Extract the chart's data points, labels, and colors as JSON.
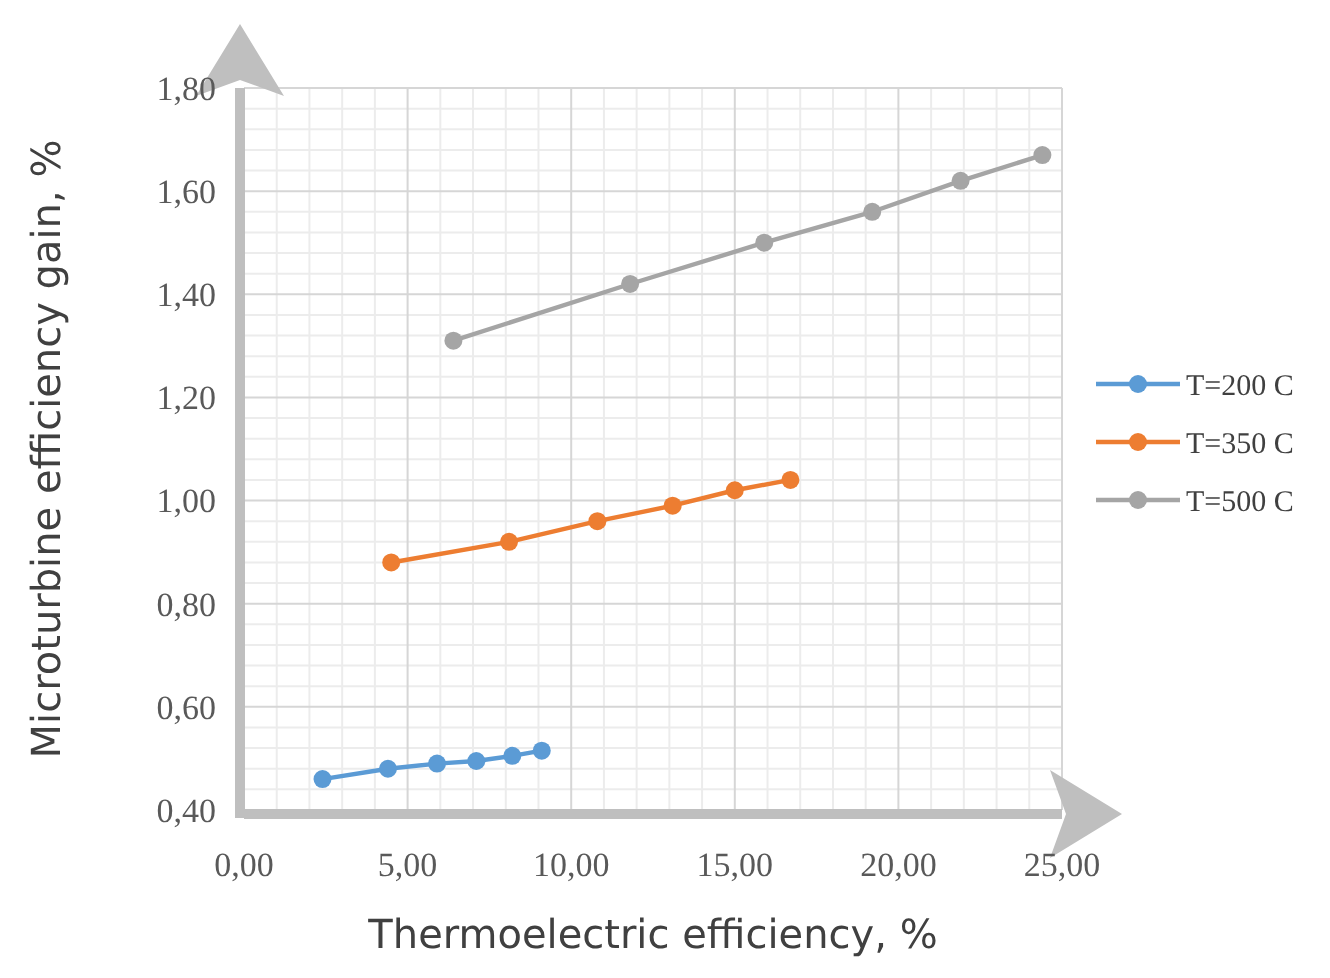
{
  "chart_data": {
    "type": "line",
    "xlabel": "Thermoelectric efficiency, %",
    "ylabel": "Microturbine efficiency gain, %",
    "xlim": [
      0,
      25
    ],
    "ylim": [
      0.4,
      1.8
    ],
    "xticks": [
      {
        "value": 0,
        "label": "0,00"
      },
      {
        "value": 5,
        "label": "5,00"
      },
      {
        "value": 10,
        "label": "10,00"
      },
      {
        "value": 15,
        "label": "15,00"
      },
      {
        "value": 20,
        "label": "20,00"
      },
      {
        "value": 25,
        "label": "25,00"
      }
    ],
    "yticks": [
      {
        "value": 0.4,
        "label": "0,40"
      },
      {
        "value": 0.6,
        "label": "0,60"
      },
      {
        "value": 0.8,
        "label": "0,80"
      },
      {
        "value": 1.0,
        "label": "1,00"
      },
      {
        "value": 1.2,
        "label": "1,20"
      },
      {
        "value": 1.4,
        "label": "1,40"
      },
      {
        "value": 1.6,
        "label": "1,60"
      },
      {
        "value": 1.8,
        "label": "1,80"
      }
    ],
    "grid": true,
    "legend": "right",
    "marker": "circle",
    "line_style": "solid",
    "series": [
      {
        "name": "T=200 C",
        "color": "#5b9bd5",
        "x": [
          2.4,
          4.4,
          5.9,
          7.1,
          8.2,
          9.1
        ],
        "values": [
          0.46,
          0.48,
          0.49,
          0.495,
          0.505,
          0.515
        ]
      },
      {
        "name": "T=350 C",
        "color": "#ed7d31",
        "x": [
          4.5,
          8.1,
          10.8,
          13.1,
          15.0,
          16.7
        ],
        "values": [
          0.88,
          0.92,
          0.96,
          0.99,
          1.02,
          1.04
        ]
      },
      {
        "name": "T=500 C",
        "color": "#a5a5a5",
        "x": [
          6.4,
          11.8,
          15.9,
          19.2,
          21.9,
          24.4
        ],
        "values": [
          1.31,
          1.42,
          1.5,
          1.56,
          1.62,
          1.67
        ]
      }
    ]
  }
}
